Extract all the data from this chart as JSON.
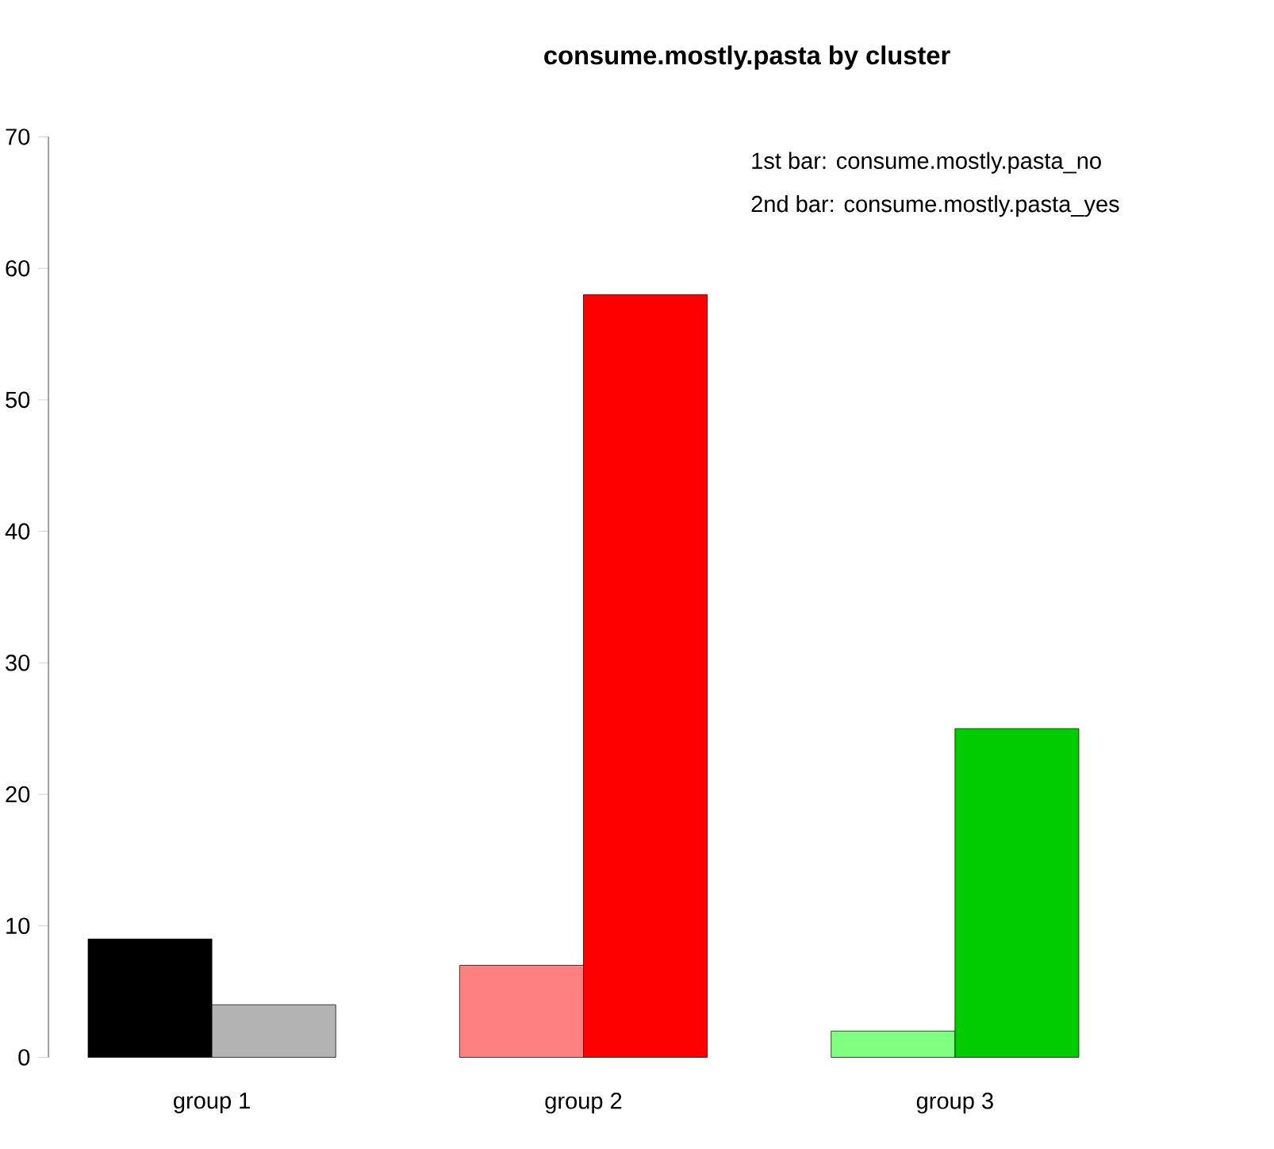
{
  "chart_data": {
    "type": "bar",
    "title": "consume.mostly.pasta by cluster",
    "categories": [
      "group 1",
      "group 2",
      "group 3"
    ],
    "series": [
      {
        "values": [
          9,
          7,
          2
        ],
        "colors": [
          "#000000",
          "#ff8080",
          "#80ff80"
        ]
      },
      {
        "values": [
          4,
          58,
          25
        ],
        "colors": [
          "#b3b3b3",
          "#ff0000",
          "#00cc00"
        ]
      }
    ],
    "ylim": [
      0,
      70
    ],
    "yticks": [
      0,
      10,
      20,
      30,
      40,
      50,
      60,
      70
    ],
    "annotations": [
      "1st bar: consume.mostly.pasta_no",
      "2nd bar: consume.mostly.pasta_yes"
    ]
  }
}
